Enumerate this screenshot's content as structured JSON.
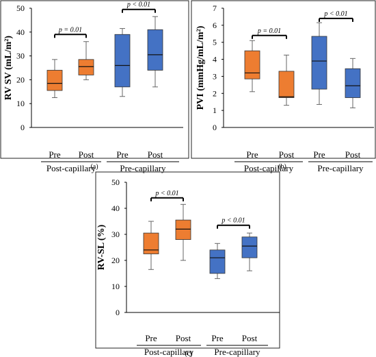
{
  "chart_data": [
    {
      "type": "boxplot",
      "panel_label": "(a)",
      "ylabel": "RV SV (mL/m²)",
      "ylim": [
        0,
        50
      ],
      "yticks": [
        0,
        10,
        20,
        30,
        40,
        50
      ],
      "groups": [
        "Post-capillary",
        "Pre-capillary"
      ],
      "categories": [
        "Pre",
        "Post",
        "Pre",
        "Post"
      ],
      "boxes": [
        {
          "group": "Post-capillary",
          "label": "Pre",
          "color": "#ED7D31",
          "min": 12.5,
          "q1": 15.5,
          "median": 18.5,
          "q3": 24,
          "max": 28.5
        },
        {
          "group": "Post-capillary",
          "label": "Post",
          "color": "#ED7D31",
          "min": 20,
          "q1": 22,
          "median": 25.5,
          "q3": 28.5,
          "max": 36
        },
        {
          "group": "Pre-capillary",
          "label": "Pre",
          "color": "#4472C4",
          "min": 13,
          "q1": 17,
          "median": 26,
          "q3": 39,
          "max": 41.5
        },
        {
          "group": "Pre-capillary",
          "label": "Post",
          "color": "#4472C4",
          "min": 17,
          "q1": 24,
          "median": 30.5,
          "q3": 41,
          "max": 46.5
        }
      ],
      "annotations": [
        {
          "text": "p = 0.01",
          "from": 0,
          "to": 1,
          "y": 39
        },
        {
          "text": "p < 0.01",
          "from": 2,
          "to": 3,
          "y": 49.5
        }
      ]
    },
    {
      "type": "boxplot",
      "panel_label": "(b)",
      "ylabel": "PVI (mmHg/mL/m²)",
      "ylim": [
        0,
        7
      ],
      "yticks": [
        0,
        1,
        2,
        3,
        4,
        5,
        6,
        7
      ],
      "groups": [
        "Post-capillary",
        "Pre-capillary"
      ],
      "categories": [
        "Pre",
        "Post",
        "Pre",
        "Post"
      ],
      "boxes": [
        {
          "group": "Post-capillary",
          "label": "Pre",
          "color": "#ED7D31",
          "min": 2.1,
          "q1": 2.85,
          "median": 3.2,
          "q3": 4.5,
          "max": 5.1
        },
        {
          "group": "Post-capillary",
          "label": "Post",
          "color": "#ED7D31",
          "min": 1.3,
          "q1": 1.75,
          "median": 1.8,
          "q3": 3.3,
          "max": 4.25
        },
        {
          "group": "Pre-capillary",
          "label": "Pre",
          "color": "#4472C4",
          "min": 1.35,
          "q1": 2.25,
          "median": 3.9,
          "q3": 5.35,
          "max": 6.15
        },
        {
          "group": "Pre-capillary",
          "label": "Post",
          "color": "#4472C4",
          "min": 1.15,
          "q1": 1.75,
          "median": 2.45,
          "q3": 3.45,
          "max": 4.05
        }
      ],
      "annotations": [
        {
          "text": "p = 0.01",
          "from": 0,
          "to": 1,
          "y": 5.4
        },
        {
          "text": "p < 0.01",
          "from": 2,
          "to": 3,
          "y": 6.4
        }
      ]
    },
    {
      "type": "boxplot",
      "panel_label": "(c)",
      "ylabel": "RV-SL (%)",
      "ylim": [
        0,
        50
      ],
      "yticks": [
        0,
        10,
        20,
        30,
        40,
        50
      ],
      "groups": [
        "Post-capillary",
        "Pre-capillary"
      ],
      "categories": [
        "Pre",
        "Post",
        "Pre",
        "Post"
      ],
      "boxes": [
        {
          "group": "Post-capillary",
          "label": "Pre",
          "color": "#ED7D31",
          "min": 16.5,
          "q1": 22.5,
          "median": 24,
          "q3": 30.5,
          "max": 35
        },
        {
          "group": "Post-capillary",
          "label": "Post",
          "color": "#ED7D31",
          "min": 20,
          "q1": 28,
          "median": 32,
          "q3": 35.5,
          "max": 41.5
        },
        {
          "group": "Pre-capillary",
          "label": "Pre",
          "color": "#4472C4",
          "min": 13,
          "q1": 15,
          "median": 21,
          "q3": 24,
          "max": 26.5
        },
        {
          "group": "Pre-capillary",
          "label": "Post",
          "color": "#4472C4",
          "min": 16,
          "q1": 21,
          "median": 25.5,
          "q3": 29,
          "max": 30.5
        }
      ],
      "annotations": [
        {
          "text": "p < 0.01",
          "from": 0,
          "to": 1,
          "y": 44
        },
        {
          "text": "p < 0.01",
          "from": 2,
          "to": 3,
          "y": 33.5
        }
      ]
    }
  ]
}
